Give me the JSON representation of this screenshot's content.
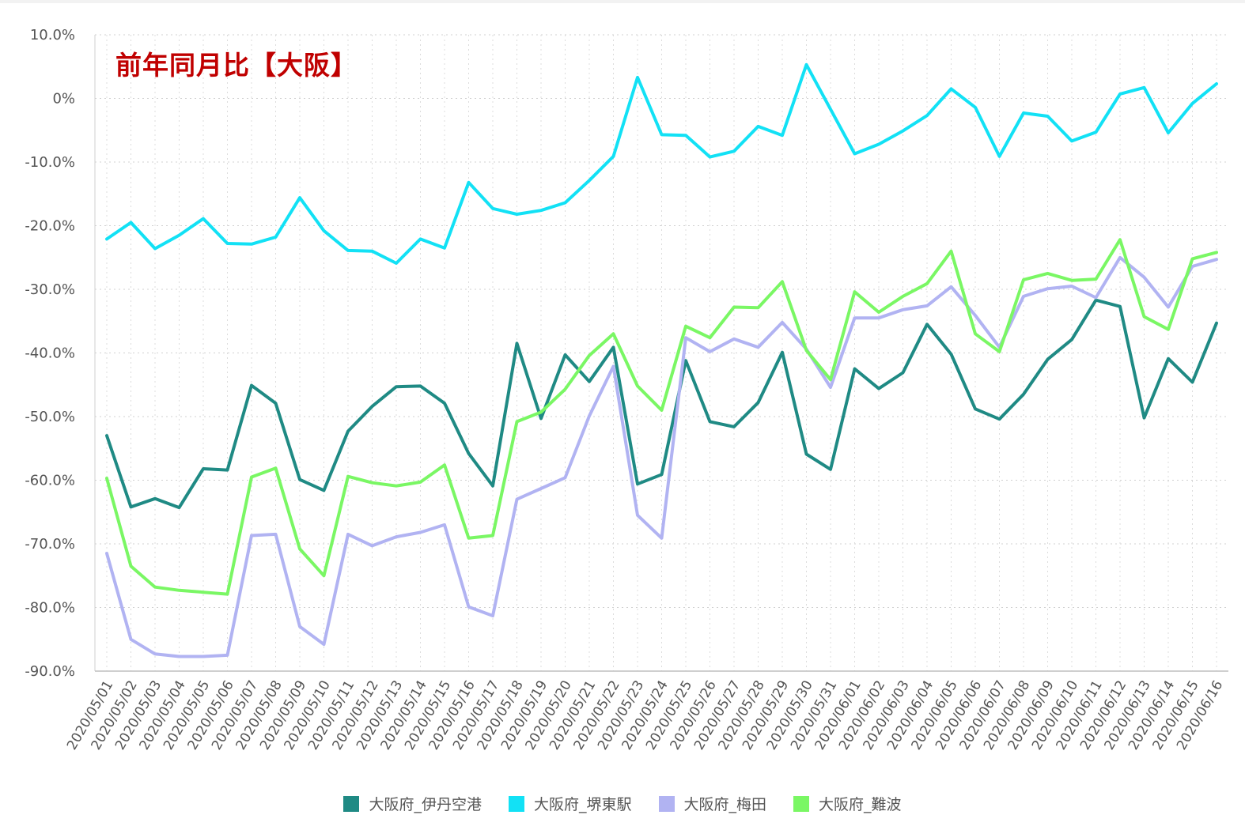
{
  "chart_data": {
    "type": "line",
    "title": "前年同月比【大阪】",
    "ylim": [
      -90,
      10
    ],
    "yticks": [
      10,
      0,
      -10,
      -20,
      -30,
      -40,
      -50,
      -60,
      -70,
      -80,
      -90
    ],
    "ytick_labels": [
      "10.0%",
      "0%",
      "-10.0%",
      "-20.0%",
      "-30.0%",
      "-40.0%",
      "-50.0%",
      "-60.0%",
      "-70.0%",
      "-80.0%",
      "-90.0%"
    ],
    "grid": true,
    "legend_position": "bottom-center",
    "categories": [
      "2020/05/01",
      "2020/05/02",
      "2020/05/03",
      "2020/05/04",
      "2020/05/05",
      "2020/05/06",
      "2020/05/07",
      "2020/05/08",
      "2020/05/09",
      "2020/05/10",
      "2020/05/11",
      "2020/05/12",
      "2020/05/13",
      "2020/05/14",
      "2020/05/15",
      "2020/05/16",
      "2020/05/17",
      "2020/05/18",
      "2020/05/19",
      "2020/05/20",
      "2020/05/21",
      "2020/05/22",
      "2020/05/23",
      "2020/05/24",
      "2020/05/25",
      "2020/05/26",
      "2020/05/27",
      "2020/05/28",
      "2020/05/29",
      "2020/05/30",
      "2020/05/31",
      "2020/06/01",
      "2020/06/02",
      "2020/06/03",
      "2020/06/04",
      "2020/06/05",
      "2020/06/06",
      "2020/06/07",
      "2020/06/08",
      "2020/06/09",
      "2020/06/10",
      "2020/06/11",
      "2020/06/12",
      "2020/06/13",
      "2020/06/14",
      "2020/06/15",
      "2020/06/16"
    ],
    "series": [
      {
        "name": "大阪府_伊丹空港",
        "color": "#1f8a84",
        "values": [
          -53,
          -64.2,
          -62.9,
          -64.3,
          -58.2,
          -58.4,
          -45.1,
          -47.9,
          -59.9,
          -61.6,
          -52.3,
          -48.4,
          -45.3,
          -45.2,
          -47.9,
          -55.8,
          -60.9,
          -38.5,
          -50.3,
          -40.3,
          -44.5,
          -39.1,
          -60.6,
          -59.1,
          -41.2,
          -50.8,
          -51.6,
          -47.8,
          -39.9,
          -55.9,
          -58.3,
          -42.5,
          -45.6,
          -43.1,
          -35.5,
          -40.2,
          -48.8,
          -50.4,
          -46.5,
          -41,
          -37.9,
          -31.7,
          -32.7,
          -50.2,
          -40.9,
          -44.6,
          -35.3
        ]
      },
      {
        "name": "大阪府_堺東駅",
        "color": "#12e1f5",
        "values": [
          -22.1,
          -19.5,
          -23.6,
          -21.5,
          -18.9,
          -22.8,
          -22.9,
          -21.8,
          -15.6,
          -20.8,
          -23.9,
          -24,
          -25.9,
          -22.1,
          -23.5,
          -13.2,
          -17.3,
          -18.2,
          -17.6,
          -16.4,
          -12.9,
          -9.1,
          3.3,
          -5.7,
          -5.8,
          -9.2,
          -8.3,
          -4.4,
          -5.8,
          5.3,
          -1.7,
          -8.7,
          -7.2,
          -5.1,
          -2.7,
          1.5,
          -1.4,
          -9.1,
          -2.3,
          -2.8,
          -6.7,
          -5.3,
          0.7,
          1.7,
          -5.4,
          -0.8,
          2.3
        ]
      },
      {
        "name": "大阪府_梅田",
        "color": "#b1b3f2",
        "values": [
          -71.5,
          -85,
          -87.3,
          -87.7,
          -87.7,
          -87.5,
          -68.7,
          -68.5,
          -83,
          -85.8,
          -68.5,
          -70.3,
          -68.9,
          -68.2,
          -67,
          -79.9,
          -81.3,
          -63,
          -61.3,
          -59.6,
          -49.9,
          -42.1,
          -65.5,
          -69.1,
          -37.6,
          -39.8,
          -37.8,
          -39.1,
          -35.2,
          -39.4,
          -45.4,
          -34.5,
          -34.5,
          -33.2,
          -32.6,
          -29.6,
          -34.1,
          -39.1,
          -31.1,
          -29.9,
          -29.5,
          -31.3,
          -25,
          -28.1,
          -32.8,
          -26.4,
          -25.3
        ]
      },
      {
        "name": "大阪府_難波",
        "color": "#7af764",
        "values": [
          -59.7,
          -73.5,
          -76.8,
          -77.3,
          -77.6,
          -77.9,
          -59.5,
          -58.1,
          -70.8,
          -75,
          -59.4,
          -60.4,
          -60.9,
          -60.3,
          -57.6,
          -69.1,
          -68.7,
          -50.8,
          -49.3,
          -45.7,
          -40.4,
          -37,
          -45.2,
          -49,
          -35.8,
          -37.6,
          -32.8,
          -32.9,
          -28.8,
          -39.6,
          -44.2,
          -30.4,
          -33.6,
          -31.1,
          -29.1,
          -24,
          -37,
          -39.8,
          -28.5,
          -27.5,
          -28.6,
          -28.4,
          -22.2,
          -34.3,
          -36.3,
          -25.2,
          -24.2
        ]
      }
    ]
  }
}
